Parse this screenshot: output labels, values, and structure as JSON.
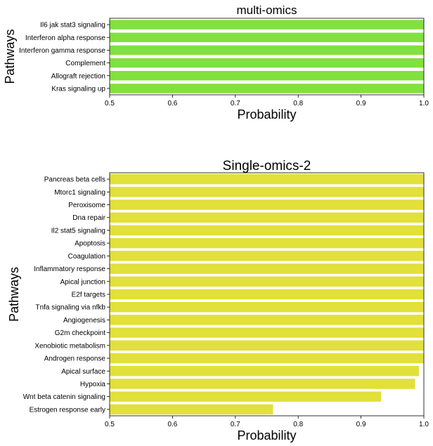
{
  "chart_data": [
    {
      "type": "bar",
      "orientation": "horizontal",
      "title": "multi-omics",
      "xlabel": "Probability",
      "ylabel": "Pathways",
      "xlim": [
        0.5,
        1.0
      ],
      "xticks": [
        "0.5",
        "0.6",
        "0.7",
        "0.8",
        "0.9",
        "1.0"
      ],
      "categories": [
        "Il6 jak stat3 signaling",
        "Interferon alpha response",
        "Interferon gamma response",
        "Complement",
        "Allograft rejection",
        "Kras signaling up"
      ],
      "values": [
        1.0,
        1.0,
        1.0,
        1.0,
        1.0,
        1.0
      ],
      "color": "#82e03f",
      "grid": false
    },
    {
      "type": "bar",
      "orientation": "horizontal",
      "title": "Single-omics-2",
      "xlabel": "Probability",
      "ylabel": "Pathways",
      "xlim": [
        0.5,
        1.0
      ],
      "xticks": [
        "0.5",
        "0.6",
        "0.7",
        "0.8",
        "0.9",
        "1.0"
      ],
      "categories": [
        "Pancreas beta cells",
        "Mtorc1 signaling",
        "Peroxisome",
        "Dna repair",
        "Il2 stat5 signaling",
        "Apoptosis",
        "Coagulation",
        "Inflammatory response",
        "Apical junction",
        "E2f targets",
        "Tnfa signaling via nfkb",
        "Angiogenesis",
        "G2m checkpoint",
        "Xenobiotic metabolism",
        "Androgen response",
        "Apical surface",
        "Hypoxia",
        "Wnt beta catenin signaling",
        "Estrogen response early"
      ],
      "values": [
        1.0,
        1.0,
        1.0,
        1.0,
        1.0,
        1.0,
        1.0,
        1.0,
        1.0,
        1.0,
        1.0,
        1.0,
        1.0,
        1.0,
        1.0,
        0.992,
        0.986,
        0.932,
        0.76
      ],
      "color": "#e2e03a",
      "grid": false
    }
  ]
}
